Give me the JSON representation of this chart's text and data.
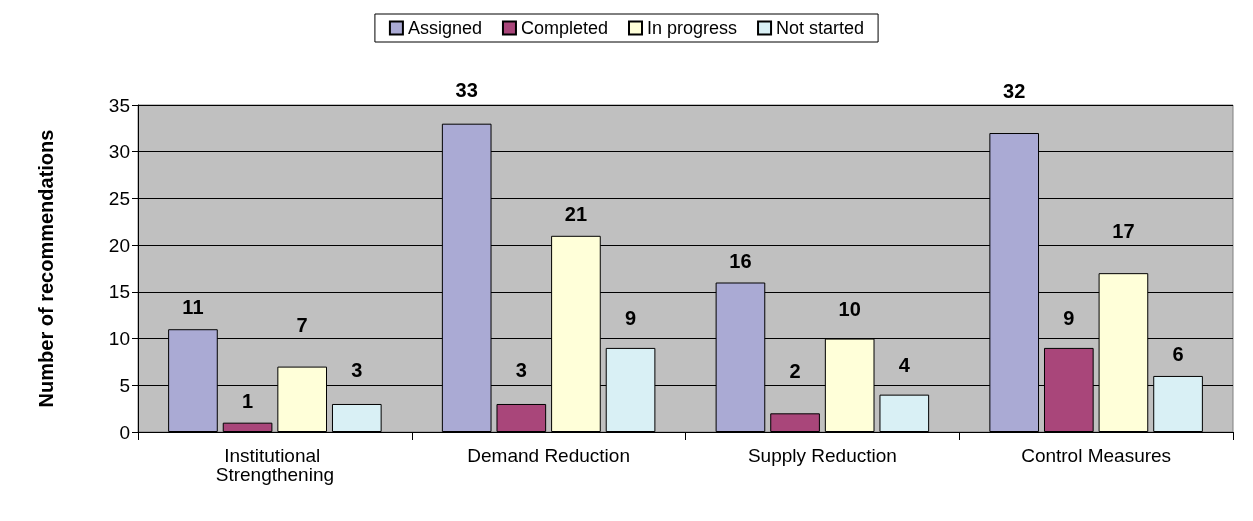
{
  "chart_data": {
    "type": "bar",
    "ylabel": "Number of recommendations",
    "categories": [
      "Institutional Strengthening",
      "Demand Reduction",
      "Supply Reduction",
      "Control Measures"
    ],
    "series": [
      {
        "name": "Assigned",
        "color": "#aaaad4",
        "values": [
          11,
          33,
          16,
          32
        ]
      },
      {
        "name": "Completed",
        "color": "#a9467a",
        "values": [
          1,
          3,
          2,
          9
        ]
      },
      {
        "name": "In progress",
        "color": "#ffffd9",
        "values": [
          7,
          21,
          10,
          17
        ]
      },
      {
        "name": "Not started",
        "color": "#d9f0f5",
        "values": [
          3,
          9,
          4,
          6
        ]
      }
    ],
    "ylim": [
      0,
      35
    ],
    "yticks": [
      0,
      5,
      10,
      15,
      20,
      25,
      30,
      35
    ],
    "grid": "y",
    "legend": "top",
    "data_labels": true
  }
}
